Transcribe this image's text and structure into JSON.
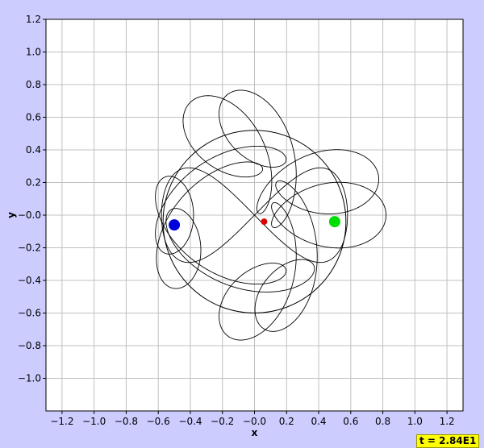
{
  "chart_data": {
    "type": "line",
    "title": "",
    "xlabel": "x",
    "ylabel": "y",
    "xlim": [
      -1.3,
      1.3
    ],
    "ylim": [
      -1.2,
      1.2
    ],
    "grid": true,
    "xticks": [
      -1.2,
      -1.0,
      -0.8,
      -0.6,
      -0.4,
      -0.2,
      0.0,
      0.2,
      0.4,
      0.6,
      0.8,
      1.0,
      1.2
    ],
    "xtick_labels": [
      "−1.2",
      "−1.0",
      "−0.8",
      "−0.6",
      "−0.4",
      "−0.2",
      "−0.0",
      "0.2",
      "0.4",
      "0.6",
      "0.8",
      "1.0",
      "1.2"
    ],
    "yticks": [
      1.2,
      1.0,
      0.8,
      0.6,
      0.4,
      0.2,
      -0.0,
      -0.2,
      -0.4,
      -0.6,
      -0.8,
      -1.0
    ],
    "ytick_labels": [
      "1.2",
      "1.0",
      "0.8",
      "0.6",
      "0.4",
      "0.2",
      "−0.0",
      "−0.2",
      "−0.4",
      "−0.6",
      "−0.8",
      "−1.0"
    ],
    "series": [
      {
        "color": "#000000",
        "kind": "trajectory",
        "shape": "rosette",
        "R": 0.42,
        "r1": 0.22,
        "r2": 0.18,
        "n": 6,
        "m": 3,
        "phase": 0.0
      },
      {
        "color": "#000000",
        "kind": "trajectory",
        "shape": "rosette",
        "R": 0.42,
        "r1": 0.22,
        "r2": 0.18,
        "n": 6,
        "m": 3,
        "phase": 0.5236
      },
      {
        "color": "#000000",
        "kind": "trajectory",
        "shape": "figure-eight",
        "ax": 0.58,
        "ay": 0.58
      }
    ],
    "points": [
      {
        "name": "",
        "x": -0.5,
        "y": -0.06,
        "color": "#0000dd",
        "size": 7
      },
      {
        "name": "",
        "x": 0.5,
        "y": -0.04,
        "color": "#00dd00",
        "size": 7
      },
      {
        "name": "",
        "x": 0.06,
        "y": -0.04,
        "color": "#dd0000",
        "size": 4
      }
    ],
    "annotations": [
      {
        "text": "t = 2.84E1",
        "position": "bottom-right",
        "background": "#ffff00"
      }
    ]
  },
  "colors": {
    "background": "#ccccff",
    "plot_area": "#ffffff",
    "grid": "#c0c0c0",
    "frame": "#000000"
  }
}
